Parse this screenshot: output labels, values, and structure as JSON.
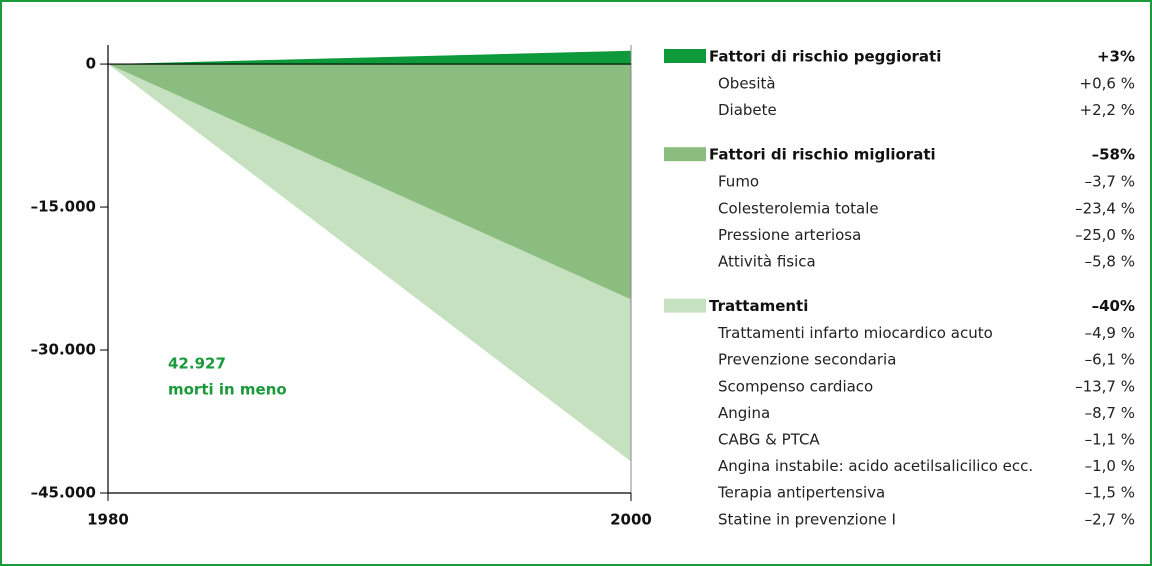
{
  "chart_data": {
    "type": "area",
    "x": [
      1980,
      2000
    ],
    "xlim": [
      1980,
      2000
    ],
    "xticks": [
      1980,
      2000
    ],
    "ylim": [
      -45000,
      2000
    ],
    "yticks": [
      0,
      {
        "value": -15000,
        "label": "–15.000"
      },
      {
        "value": -30000,
        "label": "–30.000"
      },
      {
        "value": -45000,
        "label": "–45.000"
      }
    ],
    "annotation": [
      "42.927",
      "morti in meno"
    ],
    "series": [
      {
        "name": "Fattori di rischio peggiorati",
        "color": "#0e9a3a",
        "values": [
          0,
          1400
        ],
        "total_label": "+3%",
        "items": [
          {
            "label": "Obesità",
            "value": "+0,6 %"
          },
          {
            "label": "Diabete",
            "value": "+2,2 %"
          }
        ]
      },
      {
        "name": "Fattori di rischio migliorati",
        "color": "#8abd7f",
        "values": [
          0,
          -24700
        ],
        "total_label": "–58%",
        "items": [
          {
            "label": "Fumo",
            "value": "–3,7 %"
          },
          {
            "label": "Colesterolemia totale",
            "value": "–23,4 %"
          },
          {
            "label": "Pressione arteriosa",
            "value": "–25,0 %"
          },
          {
            "label": "Attività fisica",
            "value": "–5,8 %"
          }
        ]
      },
      {
        "name": "Trattamenti",
        "color": "#c6e1bf",
        "values": [
          0,
          -17000
        ],
        "total_label": "–40%",
        "items": [
          {
            "label": "Trattamenti infarto miocardico acuto",
            "value": "–4,9 %"
          },
          {
            "label": "Prevenzione secondaria",
            "value": "–6,1 %"
          },
          {
            "label": "Scompenso cardiaco",
            "value": "–13,7 %"
          },
          {
            "label": "Angina",
            "value": "–8,7 %"
          },
          {
            "label": "CABG & PTCA",
            "value": "–1,1 %"
          },
          {
            "label": "Angina instabile: acido acetilsalicilico ecc.",
            "value": "–1,0 %"
          },
          {
            "label": "Terapia antipertensiva",
            "value": "–1,5 %"
          },
          {
            "label": "Statine in prevenzione I",
            "value": "–2,7 %"
          }
        ]
      }
    ]
  }
}
